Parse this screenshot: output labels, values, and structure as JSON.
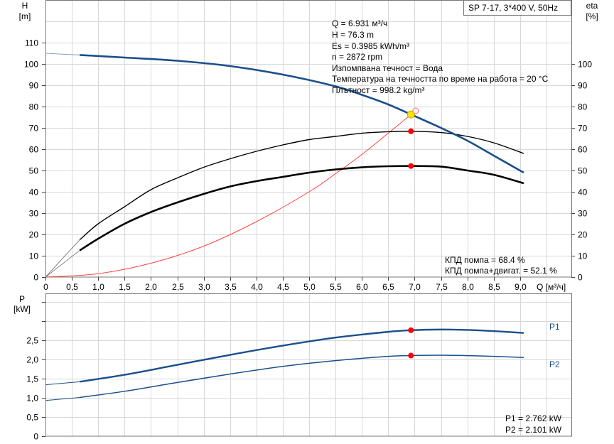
{
  "title_box": "SP 7-17, 3*400 V, 50Hz",
  "top_chart": {
    "left_axis_label": "H",
    "left_axis_unit": "[m]",
    "right_axis_label": "eta",
    "right_axis_unit": "[%]",
    "x_axis_label": "Q [м³/ч]",
    "info": [
      "Q = 6.931 м³/ч",
      "H = 76.3 m",
      "Es = 0.3985 kWh/m³",
      "n = 2872 rpm",
      "Изпомпвана течност = Вода",
      "Температура на течността по време на работа = 20 °C",
      "Плътност = 998.2 kg/m³"
    ],
    "efficiency_info": [
      "КПД помпа = 68.4 %",
      "КПД помпа+двигат. = 52.1 %"
    ]
  },
  "bottom_chart": {
    "axis_label": "P",
    "axis_unit": "[kW]",
    "p1_label": "P1",
    "p2_label": "P2",
    "info": [
      "P1 = 2.762 kW",
      "P2 = 2.101 kW"
    ]
  },
  "colors": {
    "head_curve": "#1a4f8b",
    "efficiency_curve": "#000000",
    "system_curve": "#ff4040",
    "duty_point": "#ffe000",
    "marker": "#ff0000",
    "grid": "#d8d8d8",
    "power_curve": "#1a4f8b"
  },
  "chart_data": [
    {
      "type": "line",
      "title": "SP 7-17, 3*400 V, 50Hz",
      "xlabel": "Q [м³/ч]",
      "ylabel": "H [m]",
      "y2label": "eta [%]",
      "xlim": [
        0,
        10
      ],
      "ylim": [
        0,
        130
      ],
      "y2lim": [
        0,
        100
      ],
      "x_ticks": [
        "0",
        "0,5",
        "1,0",
        "1,5",
        "2,0",
        "2,5",
        "3,0",
        "3,5",
        "4,0",
        "4,5",
        "5,0",
        "5,5",
        "6,0",
        "6,5",
        "7,0",
        "7,5",
        "8,0",
        "8,5",
        "9,0"
      ],
      "y_ticks": [
        0,
        10,
        20,
        30,
        40,
        50,
        60,
        70,
        80,
        90,
        100,
        110
      ],
      "y2_ticks": [
        0,
        10,
        20,
        30,
        40,
        50,
        60,
        70,
        80,
        90,
        100
      ],
      "grid": true,
      "series": [
        {
          "name": "H",
          "axis": "left",
          "x": [
            0,
            0.65,
            1.5,
            2.5,
            3.5,
            4.5,
            5.5,
            6.0,
            6.5,
            6.931,
            7.5,
            8.0,
            8.5,
            9.07
          ],
          "y": [
            105,
            104.2,
            103,
            101.5,
            99,
            95,
            89.5,
            85.5,
            81,
            76.3,
            70,
            64,
            57,
            49
          ]
        },
        {
          "name": "eta pump",
          "axis": "right",
          "x": [
            0,
            0.65,
            1.0,
            1.5,
            2.0,
            2.5,
            3.0,
            3.5,
            4.0,
            4.5,
            5.0,
            5.5,
            6.0,
            6.5,
            6.931,
            7.5,
            8.0,
            8.5,
            9.07
          ],
          "y": [
            0,
            17.5,
            25,
            33,
            41,
            46.5,
            51.5,
            55.5,
            59,
            62,
            64.5,
            66,
            67.5,
            68.2,
            68.4,
            67.8,
            66,
            63,
            58
          ]
        },
        {
          "name": "eta pump+motor",
          "axis": "right",
          "x": [
            0,
            0.65,
            1.0,
            1.5,
            2.0,
            2.5,
            3.0,
            3.5,
            4.0,
            4.5,
            5.0,
            5.5,
            6.0,
            6.5,
            6.931,
            7.5,
            8.0,
            8.5,
            9.07
          ],
          "y": [
            0,
            12.5,
            18,
            25,
            30.5,
            35,
            39,
            42.5,
            45,
            47,
            49,
            50.5,
            51.5,
            52,
            52.1,
            51.8,
            50,
            48,
            44
          ]
        },
        {
          "name": "system curve",
          "axis": "left",
          "x": [
            0,
            1,
            2,
            3,
            4,
            5,
            5.5,
            6,
            6.5,
            6.931,
            7.0
          ],
          "y": [
            0,
            1.6,
            6.5,
            14.5,
            26,
            40,
            48.5,
            57.5,
            67.5,
            76.3,
            78
          ]
        }
      ],
      "duty_point": {
        "Q": 6.931,
        "H": 76.3,
        "eta_pump": 68.4,
        "eta_total": 52.1
      }
    },
    {
      "type": "line",
      "xlabel": "Q [м³/ч]",
      "ylabel": "P [kW]",
      "xlim": [
        0,
        10
      ],
      "ylim": [
        0,
        3.7
      ],
      "y_ticks": [
        "0",
        "0,5",
        "1,0",
        "1,5",
        "2,0",
        "2,5"
      ],
      "grid": true,
      "series": [
        {
          "name": "P1",
          "x": [
            0,
            0.65,
            1.5,
            2.5,
            3.5,
            4.5,
            5.5,
            6.5,
            6.931,
            7.5,
            8.0,
            8.5,
            9.07
          ],
          "y": [
            1.34,
            1.42,
            1.6,
            1.86,
            2.12,
            2.36,
            2.57,
            2.72,
            2.762,
            2.78,
            2.77,
            2.74,
            2.69
          ]
        },
        {
          "name": "P2",
          "x": [
            0,
            0.65,
            1.5,
            2.5,
            3.5,
            4.5,
            5.5,
            6.5,
            6.931,
            7.5,
            8.0,
            8.5,
            9.07
          ],
          "y": [
            0.93,
            1.01,
            1.17,
            1.4,
            1.62,
            1.82,
            1.97,
            2.08,
            2.101,
            2.11,
            2.1,
            2.08,
            2.05
          ]
        }
      ],
      "duty_point": {
        "Q": 6.931,
        "P1": 2.762,
        "P2": 2.101
      }
    }
  ]
}
